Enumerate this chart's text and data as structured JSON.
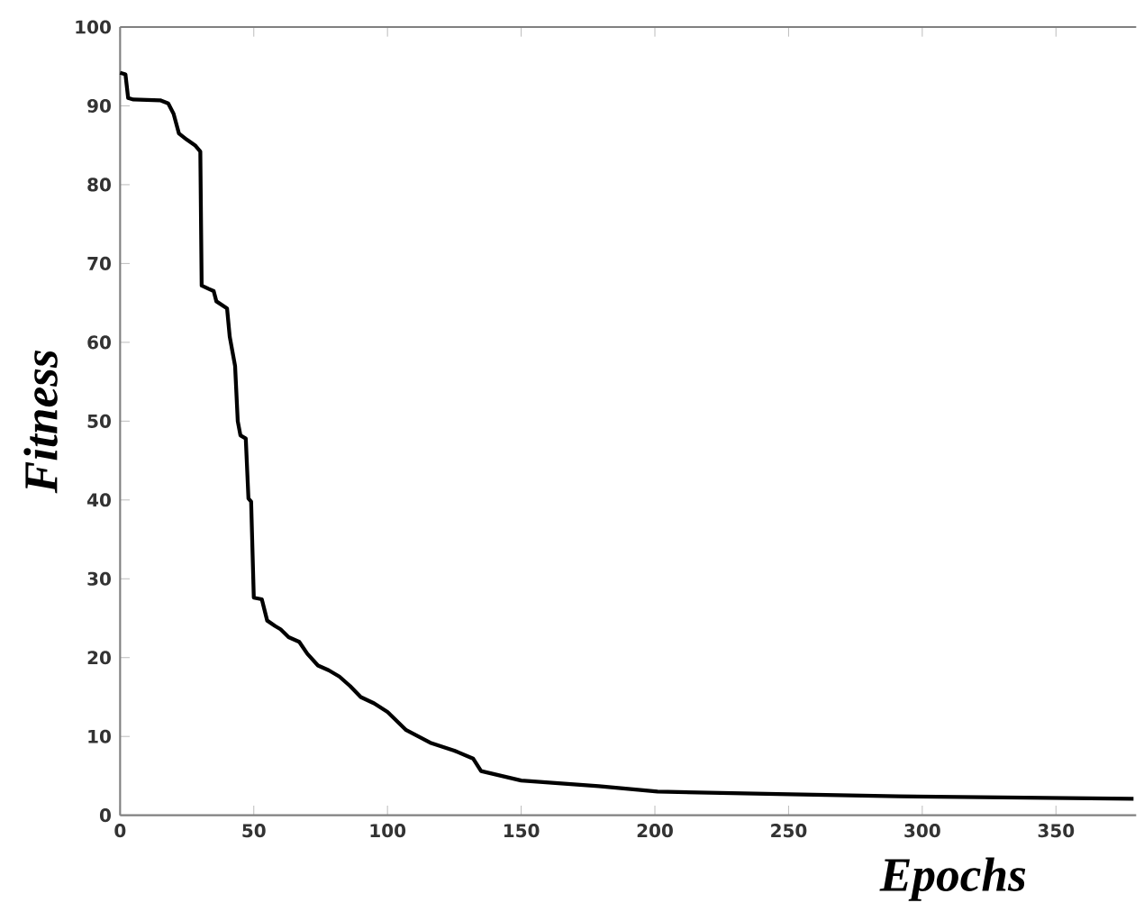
{
  "chart_data": {
    "type": "line",
    "xlabel": "Epochs",
    "ylabel": "Fitness",
    "color": "#000000",
    "line_style": "solid",
    "x": [
      0,
      2,
      3,
      5,
      15,
      18,
      20,
      22,
      25,
      28,
      30,
      30.5,
      33,
      35,
      36,
      40,
      41,
      43,
      44,
      45,
      47,
      48,
      49,
      50,
      53,
      55,
      58,
      60,
      63,
      67,
      70,
      74,
      78,
      82,
      86,
      90,
      95,
      100,
      107,
      116,
      125,
      132,
      135,
      150,
      179,
      201,
      246,
      291,
      379
    ],
    "values": [
      94.2,
      94,
      91,
      90.8,
      90.7,
      90.3,
      89,
      86.5,
      85.7,
      85,
      84.2,
      67.2,
      66.8,
      66.5,
      65.2,
      64.3,
      60.7,
      57,
      50,
      48.2,
      47.8,
      40.2,
      39.8,
      27.6,
      27.4,
      24.7,
      24,
      23.6,
      22.6,
      22,
      20.5,
      19,
      18.4,
      17.6,
      16.4,
      15,
      14.2,
      13.1,
      10.8,
      9.2,
      8.2,
      7.2,
      5.6,
      4.4,
      3.7,
      3.0,
      2.7,
      2.4,
      2.1
    ],
    "xlim": [
      0,
      380
    ],
    "ylim": [
      0,
      100
    ],
    "xticks": [
      0,
      50,
      100,
      150,
      200,
      250,
      300,
      350
    ],
    "yticks": [
      0,
      10,
      20,
      30,
      40,
      50,
      60,
      70,
      80,
      90,
      100
    ]
  }
}
